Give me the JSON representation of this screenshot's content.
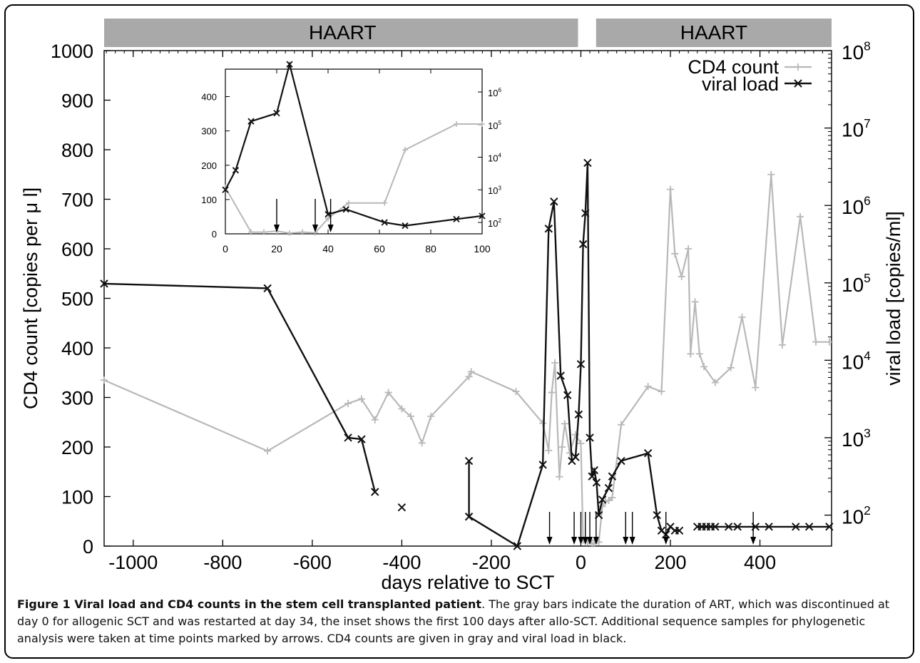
{
  "chart_data": {
    "type": "line",
    "xlabel": "days relative to SCT",
    "ylabel": "CD4 count [copies per μ l]",
    "ylabel_right": "viral load [copies/ml]",
    "xlim": [
      -1065,
      560
    ],
    "ylim": [
      0,
      1000
    ],
    "ylim_right_log10": [
      1.6,
      8.0
    ],
    "x_ticks": [
      -1000,
      -800,
      -600,
      -400,
      -200,
      0,
      200,
      400
    ],
    "y_ticks": [
      0,
      100,
      200,
      300,
      400,
      500,
      600,
      700,
      800,
      900,
      1000
    ],
    "y2_ticks": [
      {
        "base": "10",
        "exp": "2",
        "log": 2
      },
      {
        "base": "10",
        "exp": "3",
        "log": 3
      },
      {
        "base": "10",
        "exp": "4",
        "log": 4
      },
      {
        "base": "10",
        "exp": "5",
        "log": 5
      },
      {
        "base": "10",
        "exp": "6",
        "log": 6
      },
      {
        "base": "10",
        "exp": "7",
        "log": 7
      },
      {
        "base": "10",
        "exp": "8",
        "log": 8
      }
    ],
    "haart_bars": [
      {
        "label": "HAART",
        "from": -1065,
        "to": 0
      },
      {
        "label": "HAART",
        "from": 34,
        "to": 560
      }
    ],
    "legend_position": "top-right",
    "series": [
      {
        "name": "CD4 count",
        "color": "#b8b8b8",
        "marker": "plus",
        "axis": "left",
        "x": [
          -1065,
          -700,
          -520,
          -490,
          -460,
          -430,
          -400,
          -380,
          -355,
          -335,
          -250,
          -245,
          -145,
          -85,
          -72,
          -65,
          -58,
          -48,
          -42,
          -36,
          -25,
          -12,
          0,
          5,
          10,
          15,
          20,
          25,
          30,
          35,
          40,
          48,
          55,
          62,
          70,
          90,
          150,
          180,
          200,
          210,
          225,
          240,
          245,
          255,
          265,
          275,
          300,
          335,
          360,
          390,
          425,
          450,
          490,
          525,
          555
        ],
        "y": [
          335,
          192,
          288,
          297,
          255,
          310,
          277,
          262,
          208,
          262,
          342,
          352,
          312,
          248,
          193,
          310,
          370,
          140,
          200,
          247,
          188,
          225,
          207,
          12,
          10,
          8,
          12,
          5,
          5,
          12,
          8,
          80,
          90,
          92,
          98,
          245,
          322,
          312,
          720,
          590,
          544,
          600,
          388,
          493,
          388,
          362,
          330,
          360,
          462,
          320,
          750,
          406,
          665,
          412,
          412
        ]
      },
      {
        "name": "viral load",
        "color": "#111111",
        "marker": "cross",
        "axis": "right",
        "segments": [
          {
            "x": [
              -1065,
              -700,
              -520,
              -490,
              -460
            ],
            "log10": [
              4.99,
              4.93,
              3.0,
              2.98,
              2.3
            ]
          },
          {
            "x": [
              -400
            ],
            "log10": [
              2.1
            ]
          },
          {
            "x": [
              -250,
              -250,
              -142,
              -85,
              -72,
              -60,
              -45,
              -30,
              -20,
              -12,
              -5,
              0,
              5,
              10,
              15,
              20,
              25,
              30,
              35,
              40,
              48,
              62,
              70,
              90,
              150,
              170,
              180,
              190,
              200,
              210,
              220
            ],
            "log10": [
              2.7,
              1.98,
              1.6,
              2.65,
              5.7,
              6.05,
              3.8,
              3.55,
              2.7,
              2.75,
              3.3,
              3.95,
              5.5,
              5.9,
              6.55,
              3.0,
              2.5,
              2.58,
              2.42,
              2.0,
              2.2,
              2.35,
              2.5,
              2.7,
              2.8,
              2.0,
              1.8,
              1.75,
              1.85,
              1.8,
              1.8
            ]
          },
          {
            "x": [
              260,
              270,
              280,
              290,
              300,
              330,
              350,
              390,
              420,
              480,
              510,
              555
            ],
            "log10": [
              1.85,
              1.85,
              1.85,
              1.85,
              1.85,
              1.85,
              1.85,
              1.85,
              1.85,
              1.85,
              1.85,
              1.85
            ]
          }
        ]
      }
    ],
    "sample_arrows_x": [
      -70,
      -15,
      0,
      10,
      20,
      34,
      100,
      115,
      190,
      385
    ],
    "inset": {
      "xlim": [
        0,
        100
      ],
      "ylim": [
        0,
        480
      ],
      "ylim_right_log10": [
        1.65,
        6.7
      ],
      "x_ticks": [
        0,
        20,
        40,
        60,
        80,
        100
      ],
      "y_ticks": [
        0,
        100,
        200,
        300,
        400
      ],
      "y2_ticks": [
        {
          "base": "10",
          "exp": "2",
          "log": 2
        },
        {
          "base": "10",
          "exp": "3",
          "log": 3
        },
        {
          "base": "10",
          "exp": "4",
          "log": 4
        },
        {
          "base": "10",
          "exp": "5",
          "log": 5
        },
        {
          "base": "10",
          "exp": "6",
          "log": 6
        }
      ],
      "cd4": {
        "x": [
          0,
          10,
          15,
          20,
          25,
          30,
          35,
          40,
          48,
          62,
          70,
          90,
          100
        ],
        "y": [
          135,
          5,
          5,
          8,
          2,
          5,
          3,
          45,
          90,
          90,
          245,
          320,
          320
        ]
      },
      "viral": {
        "x": [
          0,
          4,
          10,
          20,
          25,
          40,
          47,
          62,
          70,
          90,
          100
        ],
        "log10": [
          3.0,
          3.6,
          5.1,
          5.35,
          6.85,
          2.25,
          2.4,
          2.0,
          1.9,
          2.1,
          2.2
        ]
      },
      "arrows_x": [
        20,
        35,
        41
      ]
    }
  },
  "caption": {
    "label": "Figure 1 Viral load and CD4 counts in the stem cell transplanted patient",
    "text": ". The gray bars indicate the duration of ART, which was discontinued at day 0 for allogenic SCT and was restarted at day 34, the inset shows the first 100 days after allo-SCT. Additional sequence samples for phylogenetic analysis were taken at time points marked by arrows. CD4 counts are given in gray and viral load in black."
  },
  "colors": {
    "haart_bar": "#a9a9a9",
    "cd4": "#b8b8b8",
    "viral": "#111111"
  }
}
